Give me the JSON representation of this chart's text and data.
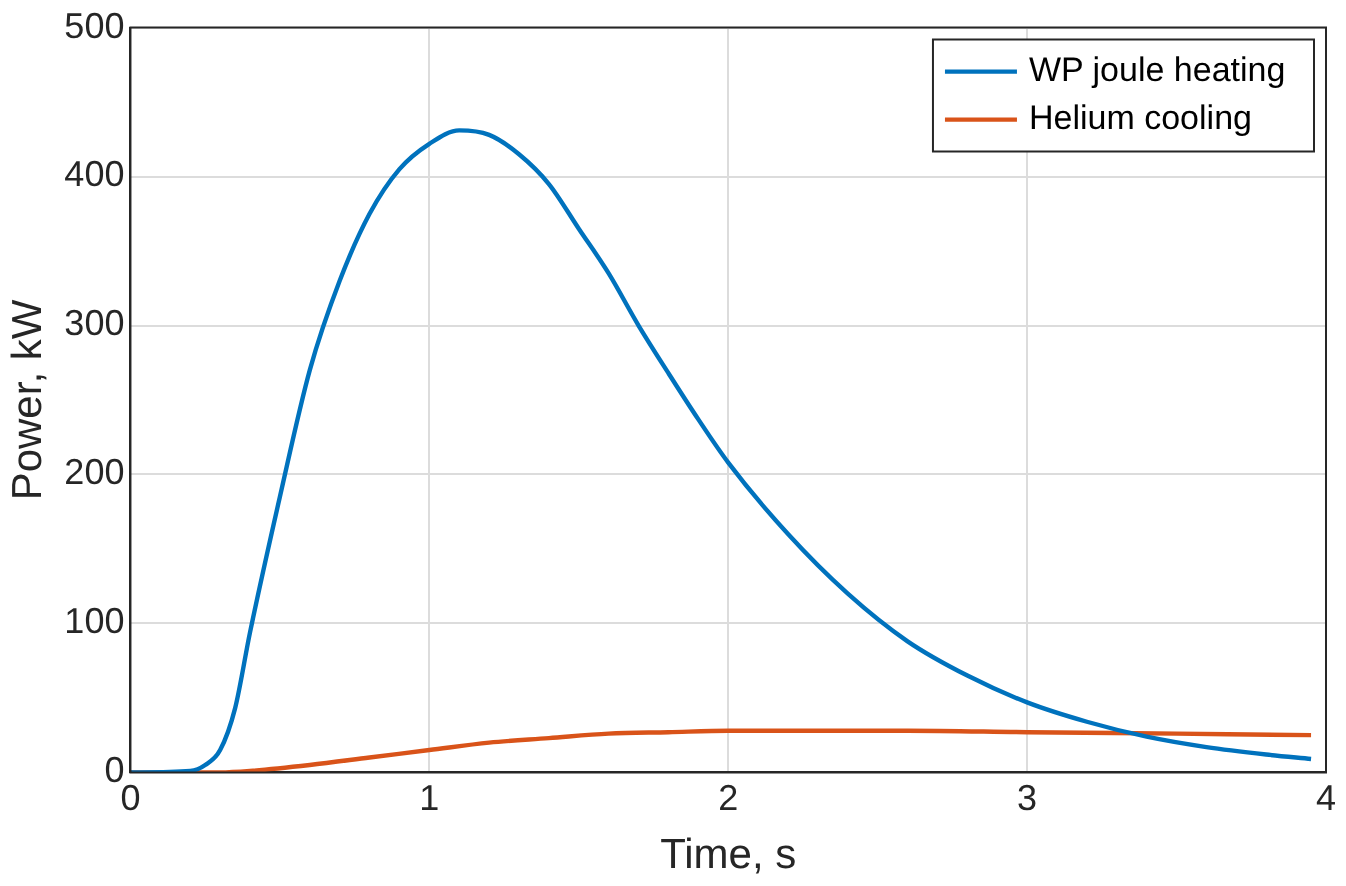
{
  "chart_data": {
    "type": "line",
    "xlabel": "Time, s",
    "ylabel": "Power, kW",
    "xlim": [
      0,
      4
    ],
    "xticks": [
      0,
      1,
      2,
      3,
      4
    ],
    "ylim": [
      0,
      500
    ],
    "yticks": [
      0,
      100,
      200,
      300,
      400,
      500
    ],
    "grid": true,
    "legend": "top right",
    "marker": "none",
    "line_style": "solid",
    "series": [
      {
        "name": "WP joule heating",
        "color": "#0072bd",
        "x": [
          0,
          0.2,
          0.25,
          0.3,
          0.35,
          0.4,
          0.5,
          0.6,
          0.7,
          0.8,
          0.9,
          1.0,
          1.1,
          1.2,
          1.3,
          1.4,
          1.5,
          1.6,
          1.7,
          1.8,
          1.9,
          2.0,
          2.2,
          2.4,
          2.6,
          2.8,
          3.0,
          3.2,
          3.4,
          3.6,
          3.8,
          3.95
        ],
        "values": [
          0,
          1,
          5,
          15,
          43,
          94,
          185,
          270,
          330,
          375,
          405,
          422,
          431,
          428,
          415,
          395,
          365,
          335,
          300,
          268,
          237,
          208,
          160,
          120,
          88,
          65,
          47,
          34,
          24,
          17,
          12,
          9
        ]
      },
      {
        "name": "Helium cooling",
        "color": "#d95319",
        "x": [
          0,
          0.3,
          0.4,
          0.6,
          0.8,
          1.0,
          1.2,
          1.4,
          1.6,
          1.8,
          2.0,
          2.3,
          2.6,
          3.0,
          3.5,
          3.95
        ],
        "values": [
          0,
          0,
          1,
          5,
          10,
          15,
          20,
          23,
          26,
          27,
          28,
          28,
          28,
          27,
          26,
          25
        ]
      }
    ]
  }
}
